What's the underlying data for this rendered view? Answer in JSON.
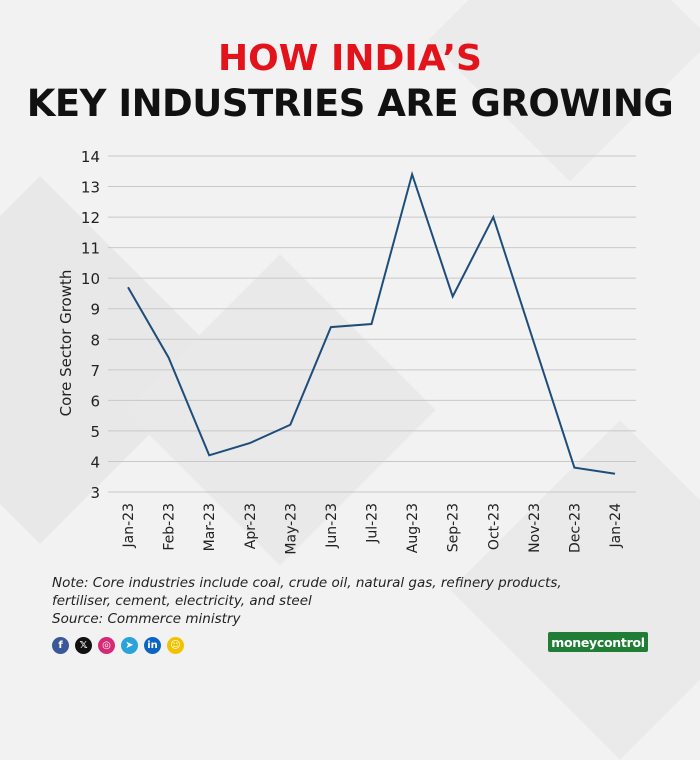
{
  "header": {
    "title_line1": "HOW INDIA’S",
    "title_line2": "KEY INDUSTRIES ARE GROWING"
  },
  "colors": {
    "title_red": "#e3131b",
    "title_black": "#111111",
    "line": "#1e4d7b",
    "grid": "#c8c8c8",
    "background": "#f2f2f2",
    "brand_green": "#1f7d35"
  },
  "chart_data": {
    "type": "line",
    "title": "HOW INDIA’S KEY INDUSTRIES ARE GROWING",
    "xlabel": "",
    "ylabel": "Core Sector Growth",
    "categories": [
      "Jan-23",
      "Feb-23",
      "Mar-23",
      "Apr-23",
      "May-23",
      "Jun-23",
      "Jul-23",
      "Aug-23",
      "Sep-23",
      "Oct-23",
      "Nov-23",
      "Dec-23",
      "Jan-24"
    ],
    "series": [
      {
        "name": "",
        "values": [
          9.7,
          7.4,
          4.2,
          4.6,
          5.2,
          8.4,
          8.5,
          13.4,
          9.4,
          12.0,
          7.9,
          3.8,
          3.6
        ]
      }
    ],
    "ylim": [
      3,
      14
    ],
    "yticks": [
      3,
      4,
      5,
      6,
      7,
      8,
      9,
      10,
      11,
      12,
      13,
      14
    ],
    "grid": "horizontal",
    "legend": "none"
  },
  "footer": {
    "note_line1": "Note: Core industries include coal, crude oil, natural gas, refinery products,",
    "note_line2": "fertiliser, cement, electricity, and steel",
    "source": "Source: Commerce ministry",
    "brand": "moneycontrol"
  },
  "social": [
    {
      "icon": "facebook-icon",
      "glyph": "f",
      "color": "#3b5998"
    },
    {
      "icon": "x-icon",
      "glyph": "𝕏",
      "color": "#111111"
    },
    {
      "icon": "instagram-icon",
      "glyph": "◎",
      "color": "#d62976"
    },
    {
      "icon": "telegram-icon",
      "glyph": "➤",
      "color": "#2aa3dc"
    },
    {
      "icon": "linkedin-icon",
      "glyph": "in",
      "color": "#0a66c2"
    },
    {
      "icon": "snapchat-icon",
      "glyph": "☺",
      "color": "#f2c200"
    }
  ]
}
